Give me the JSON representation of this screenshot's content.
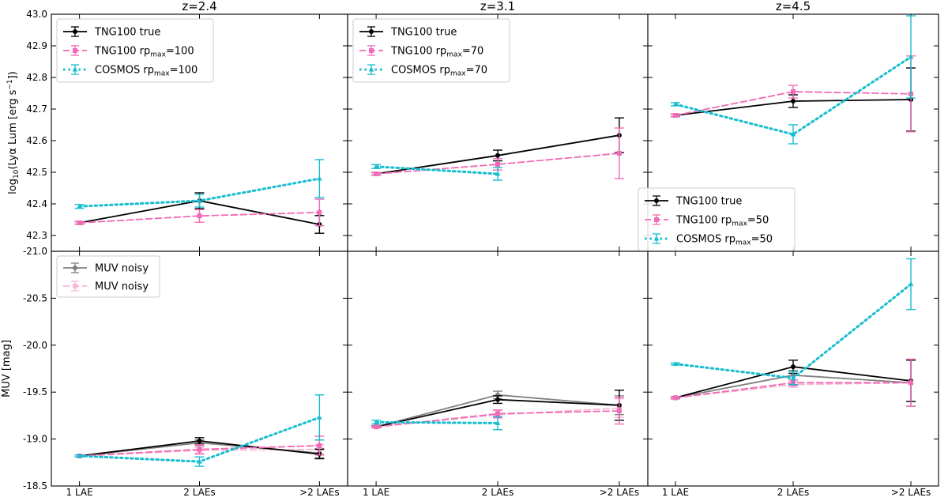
{
  "colors": {
    "tng_true": "#000000",
    "tng_rpmax": "#f06ab7",
    "cosmos": "#17becf",
    "muv_noisy_true": "#808080",
    "muv_noisy_rpmax": "#f7b6d2"
  },
  "chart_data": {
    "type": "line",
    "categories": [
      "1 LAE",
      "2 LAEs",
      ">2 LAEs"
    ],
    "columns": [
      "z=2.4",
      "z=3.1",
      "z=4.5"
    ],
    "top_row": {
      "ylabel": "log10(Lyα Lum [erg s−1])",
      "ylim": [
        42.25,
        43.0
      ],
      "yticks": [
        "43.0",
        "42.9",
        "42.8",
        "42.7",
        "42.6",
        "42.5",
        "42.4",
        "42.3"
      ],
      "panels": [
        {
          "legend": {
            "placement": "top-left",
            "entries": [
              "TNG100 true",
              "TNG100 rp",
              "COSMOS rp"
            ],
            "rpmax": "=100"
          },
          "series": [
            {
              "name": "TNG100 true",
              "values": [
                42.34,
                42.41,
                42.335
              ],
              "err": [
                0.004,
                0.025,
                0.028
              ]
            },
            {
              "name": "TNG100 rpmax=100",
              "values": [
                42.34,
                42.362,
                42.373
              ],
              "err": [
                0.004,
                0.02,
                0.042
              ]
            },
            {
              "name": "COSMOS rpmax=100",
              "values": [
                42.392,
                42.41,
                42.48
              ],
              "err": [
                0.006,
                0.02,
                0.06
              ]
            }
          ]
        },
        {
          "legend": {
            "placement": "top-left",
            "entries": [
              "TNG100 true",
              "TNG100 rp",
              "COSMOS rp"
            ],
            "rpmax": "=70"
          },
          "series": [
            {
              "name": "TNG100 true",
              "values": [
                42.495,
                42.553,
                42.617
              ],
              "err": [
                0.004,
                0.017,
                0.055
              ]
            },
            {
              "name": "TNG100 rpmax=70",
              "values": [
                42.495,
                42.525,
                42.56
              ],
              "err": [
                0.004,
                0.018,
                0.08
              ]
            },
            {
              "name": "COSMOS rpmax=70",
              "values": [
                42.518,
                42.495,
                null
              ],
              "err": [
                0.006,
                0.02,
                null
              ]
            }
          ]
        },
        {
          "legend": {
            "placement": "bottom-right",
            "entries": [
              "TNG100 true",
              "TNG100 rp",
              "COSMOS rp"
            ],
            "rpmax": "=50"
          },
          "series": [
            {
              "name": "TNG100 true",
              "values": [
                42.68,
                42.725,
                42.73
              ],
              "err": [
                0.004,
                0.02,
                0.1
              ]
            },
            {
              "name": "TNG100 rpmax=50",
              "values": [
                42.68,
                42.755,
                42.748
              ],
              "err": [
                0.004,
                0.02,
                0.12
              ]
            },
            {
              "name": "COSMOS rpmax=50",
              "values": [
                42.715,
                42.62,
                42.865
              ],
              "err": [
                0.005,
                0.03,
                0.13
              ]
            }
          ]
        }
      ]
    },
    "bottom_row": {
      "ylabel": "MUV [mag]",
      "ylim": [
        -18.5,
        -21.0
      ],
      "yticks": [
        "-21.0",
        "-20.5",
        "-20.0",
        "-19.5",
        "-19.0",
        "-18.5"
      ],
      "legend": {
        "placement": "top-left",
        "entries": [
          "MUV noisy",
          "MUV noisy"
        ]
      },
      "panels": [
        {
          "series": [
            {
              "name": "MUV noisy",
              "values": [
                -18.82,
                -18.96,
                -18.85
              ],
              "err": [
                0.01,
                0.03,
                0.05
              ]
            },
            {
              "name": "MUV noisy",
              "values": [
                -18.82,
                -18.88,
                -18.89
              ],
              "err": [
                0.01,
                0.03,
                0.05
              ]
            },
            {
              "name": "TNG100 true",
              "values": [
                -18.82,
                -18.98,
                -18.84
              ],
              "err": [
                0.01,
                0.035,
                0.05
              ]
            },
            {
              "name": "TNG100 rpmax=100",
              "values": [
                -18.82,
                -18.89,
                -18.93
              ],
              "err": [
                0.01,
                0.05,
                0.1
              ]
            },
            {
              "name": "COSMOS rpmax=100",
              "values": [
                -18.82,
                -18.76,
                -19.23
              ],
              "err": [
                0.01,
                0.05,
                0.24
              ]
            }
          ]
        },
        {
          "series": [
            {
              "name": "MUV noisy",
              "values": [
                -19.13,
                -19.47,
                -19.36
              ],
              "err": [
                0.01,
                0.04,
                0.1
              ]
            },
            {
              "name": "MUV noisy",
              "values": [
                -19.13,
                -19.26,
                -19.33
              ],
              "err": [
                0.01,
                0.04,
                0.1
              ]
            },
            {
              "name": "TNG100 true",
              "values": [
                -19.13,
                -19.42,
                -19.36
              ],
              "err": [
                0.01,
                0.04,
                0.16
              ]
            },
            {
              "name": "TNG100 rpmax=70",
              "values": [
                -19.13,
                -19.27,
                -19.3
              ],
              "err": [
                0.01,
                0.04,
                0.14
              ]
            },
            {
              "name": "COSMOS rpmax=70",
              "values": [
                -19.18,
                -19.17,
                null
              ],
              "err": [
                0.02,
                0.07,
                null
              ]
            }
          ]
        },
        {
          "series": [
            {
              "name": "MUV noisy",
              "values": [
                -19.44,
                -19.68,
                -19.6
              ],
              "err": [
                0.01,
                0.05,
                0.25
              ]
            },
            {
              "name": "MUV noisy",
              "values": [
                -19.44,
                -19.58,
                -19.6
              ],
              "err": [
                0.01,
                0.03,
                0.25
              ]
            },
            {
              "name": "TNG100 true",
              "values": [
                -19.44,
                -19.77,
                -19.62
              ],
              "err": [
                0.01,
                0.07,
                0.22
              ]
            },
            {
              "name": "TNG100 rpmax=50",
              "values": [
                -19.44,
                -19.6,
                -19.6
              ],
              "err": [
                0.01,
                0.03,
                0.25
              ]
            },
            {
              "name": "COSMOS rpmax=50",
              "values": [
                -19.8,
                -19.65,
                -20.65
              ],
              "err": [
                0.01,
                0.07,
                0.27
              ]
            }
          ]
        }
      ]
    }
  }
}
